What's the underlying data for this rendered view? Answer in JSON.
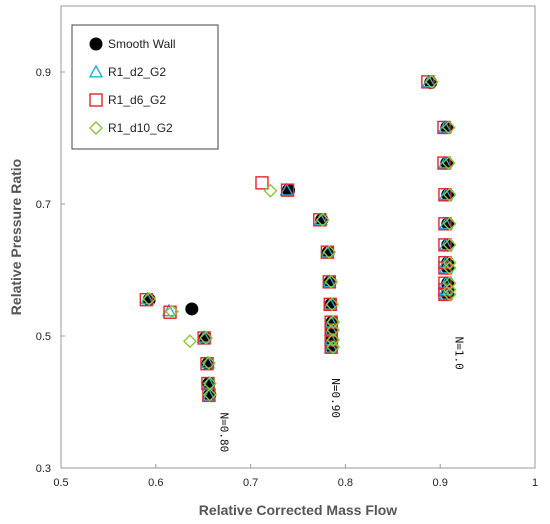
{
  "chart_data": {
    "type": "scatter",
    "title": "",
    "xlabel": "Relative Corrected Mass Flow",
    "ylabel": "Relative Pressure Ratio",
    "xlim": [
      0.5,
      1.0
    ],
    "ylim": [
      0.3,
      1.0
    ],
    "xticks": [
      "0.5",
      "0.6",
      "0.7",
      "0.8",
      "0.9",
      "1"
    ],
    "yticks": [
      "0.3",
      "0.5",
      "0.7",
      "0.9"
    ],
    "grid": false,
    "legend_position": "top-left",
    "series": [
      {
        "name": "Smooth Wall",
        "marker": "filled-circle",
        "color": "#000000",
        "points": [
          [
            0.593,
            0.555
          ],
          [
            0.638,
            0.541
          ],
          [
            0.652,
            0.497
          ],
          [
            0.655,
            0.458
          ],
          [
            0.656,
            0.428
          ],
          [
            0.657,
            0.411
          ],
          [
            0.74,
            0.721
          ],
          [
            0.775,
            0.676
          ],
          [
            0.782,
            0.627
          ],
          [
            0.784,
            0.582
          ],
          [
            0.785,
            0.548
          ],
          [
            0.786,
            0.521
          ],
          [
            0.786,
            0.509
          ],
          [
            0.786,
            0.494
          ],
          [
            0.786,
            0.483
          ],
          [
            0.89,
            0.884
          ],
          [
            0.907,
            0.816
          ],
          [
            0.907,
            0.762
          ],
          [
            0.908,
            0.714
          ],
          [
            0.908,
            0.67
          ],
          [
            0.908,
            0.638
          ],
          [
            0.908,
            0.611
          ],
          [
            0.908,
            0.603
          ],
          [
            0.908,
            0.58
          ],
          [
            0.908,
            0.57
          ],
          [
            0.908,
            0.563
          ]
        ]
      },
      {
        "name": "R1_d2_G2",
        "marker": "open-triangle",
        "color": "#29a8d8",
        "points": [
          [
            0.591,
            0.556
          ],
          [
            0.614,
            0.538
          ],
          [
            0.651,
            0.498
          ],
          [
            0.655,
            0.459
          ],
          [
            0.656,
            0.428
          ],
          [
            0.656,
            0.41
          ],
          [
            0.738,
            0.721
          ],
          [
            0.774,
            0.676
          ],
          [
            0.781,
            0.627
          ],
          [
            0.783,
            0.582
          ],
          [
            0.784,
            0.548
          ],
          [
            0.785,
            0.521
          ],
          [
            0.785,
            0.509
          ],
          [
            0.785,
            0.494
          ],
          [
            0.785,
            0.483
          ],
          [
            0.888,
            0.885
          ],
          [
            0.905,
            0.816
          ],
          [
            0.905,
            0.762
          ],
          [
            0.906,
            0.714
          ],
          [
            0.906,
            0.67
          ],
          [
            0.906,
            0.638
          ],
          [
            0.906,
            0.611
          ],
          [
            0.906,
            0.603
          ],
          [
            0.906,
            0.58
          ],
          [
            0.906,
            0.57
          ],
          [
            0.906,
            0.563
          ]
        ]
      },
      {
        "name": "R1_d6_G2",
        "marker": "open-square",
        "color": "#e0262b",
        "points": [
          [
            0.59,
            0.555
          ],
          [
            0.615,
            0.536
          ],
          [
            0.651,
            0.497
          ],
          [
            0.654,
            0.458
          ],
          [
            0.655,
            0.428
          ],
          [
            0.656,
            0.41
          ],
          [
            0.712,
            0.732
          ],
          [
            0.739,
            0.721
          ],
          [
            0.773,
            0.676
          ],
          [
            0.781,
            0.627
          ],
          [
            0.783,
            0.582
          ],
          [
            0.784,
            0.548
          ],
          [
            0.785,
            0.521
          ],
          [
            0.785,
            0.509
          ],
          [
            0.785,
            0.494
          ],
          [
            0.785,
            0.483
          ],
          [
            0.887,
            0.885
          ],
          [
            0.904,
            0.816
          ],
          [
            0.904,
            0.762
          ],
          [
            0.905,
            0.714
          ],
          [
            0.905,
            0.67
          ],
          [
            0.905,
            0.638
          ],
          [
            0.905,
            0.611
          ],
          [
            0.905,
            0.603
          ],
          [
            0.905,
            0.58
          ],
          [
            0.905,
            0.57
          ],
          [
            0.905,
            0.563
          ]
        ]
      },
      {
        "name": "R1_d10_G2",
        "marker": "open-diamond",
        "color": "#8cc63f",
        "points": [
          [
            0.593,
            0.556
          ],
          [
            0.617,
            0.537
          ],
          [
            0.636,
            0.492
          ],
          [
            0.653,
            0.497
          ],
          [
            0.656,
            0.459
          ],
          [
            0.657,
            0.428
          ],
          [
            0.657,
            0.411
          ],
          [
            0.721,
            0.72
          ],
          [
            0.776,
            0.676
          ],
          [
            0.783,
            0.627
          ],
          [
            0.785,
            0.582
          ],
          [
            0.786,
            0.548
          ],
          [
            0.787,
            0.521
          ],
          [
            0.787,
            0.509
          ],
          [
            0.787,
            0.494
          ],
          [
            0.787,
            0.483
          ],
          [
            0.891,
            0.885
          ],
          [
            0.909,
            0.816
          ],
          [
            0.909,
            0.762
          ],
          [
            0.91,
            0.714
          ],
          [
            0.91,
            0.67
          ],
          [
            0.91,
            0.638
          ],
          [
            0.91,
            0.611
          ],
          [
            0.91,
            0.603
          ],
          [
            0.91,
            0.58
          ],
          [
            0.91,
            0.57
          ],
          [
            0.91,
            0.563
          ]
        ]
      }
    ],
    "annotations": [
      {
        "text": "N=0.80",
        "x": 0.668,
        "y": 0.384
      },
      {
        "text": "N=0.90",
        "x": 0.786,
        "y": 0.436
      },
      {
        "text": "N=1.0",
        "x": 0.916,
        "y": 0.499
      }
    ]
  }
}
